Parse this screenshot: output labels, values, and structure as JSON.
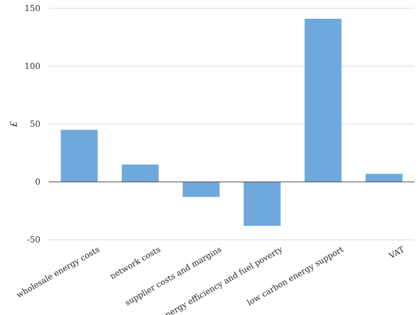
{
  "chart_data": {
    "type": "bar",
    "title": "",
    "xlabel": "",
    "ylabel": "£",
    "ylim": [
      -50,
      150
    ],
    "yticks": [
      "150",
      "100",
      "50",
      "0",
      "-50"
    ],
    "ytick_values": [
      150,
      100,
      50,
      0,
      -50
    ],
    "grid": true,
    "categories": [
      "wholesale energy costs",
      "network costs",
      "supplier costs and margins",
      "energy efficiency and fuel poverty",
      "low carbon energy support",
      "VAT"
    ],
    "values": [
      45,
      15,
      -13,
      -38,
      141,
      7
    ],
    "bar_color": "#6fa8dc",
    "grid_color": "#d9d9d9"
  }
}
